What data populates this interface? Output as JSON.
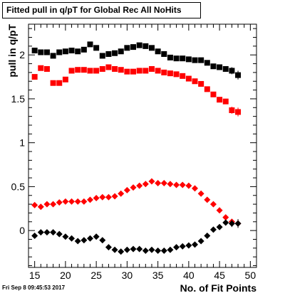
{
  "title": "Fitted pull in q/pT for Global Rec All NoHits",
  "timestamp": "Fri Sep  8 09:45:53 2017",
  "chart_data": {
    "type": "scatter",
    "title": "Fitted pull in q/pT for Global Rec All NoHits",
    "xlabel": "No. of Fit Points",
    "ylabel": "pull in q/pT",
    "xlim": [
      14,
      51
    ],
    "ylim": [
      -0.42,
      2.35
    ],
    "xticks": [
      15,
      20,
      25,
      30,
      35,
      40,
      45,
      50
    ],
    "yticks": [
      0,
      0.5,
      1,
      1.5,
      2
    ],
    "ytick_labels": [
      "0",
      "0.5",
      "1",
      "1.5",
      "2"
    ],
    "grid": false,
    "legend": "none",
    "series": [
      {
        "marker": "square",
        "color": "#000000",
        "x": [
          15,
          16,
          17,
          18,
          19,
          20,
          21,
          22,
          23,
          24,
          25,
          26,
          27,
          28,
          29,
          30,
          31,
          32,
          33,
          34,
          35,
          36,
          37,
          38,
          39,
          40,
          41,
          42,
          43,
          44,
          45,
          46,
          47,
          48
        ],
        "y": [
          2.05,
          2.03,
          2.03,
          1.99,
          2.03,
          2.04,
          2.05,
          2.04,
          2.06,
          2.12,
          2.08,
          1.99,
          2.01,
          2.02,
          2.04,
          2.08,
          2.09,
          2.11,
          2.1,
          2.08,
          2.04,
          2.01,
          1.97,
          1.96,
          1.96,
          1.95,
          1.94,
          1.94,
          1.91,
          1.87,
          1.86,
          1.84,
          1.82,
          1.77
        ],
        "yerr": [
          0.02,
          0.02,
          0.02,
          0.02,
          0.02,
          0.02,
          0.02,
          0.02,
          0.02,
          0.02,
          0.02,
          0.02,
          0.02,
          0.02,
          0.02,
          0.02,
          0.02,
          0.02,
          0.02,
          0.02,
          0.02,
          0.02,
          0.02,
          0.02,
          0.02,
          0.02,
          0.02,
          0.02,
          0.02,
          0.02,
          0.03,
          0.03,
          0.04,
          0.05
        ]
      },
      {
        "marker": "square",
        "color": "#ff0000",
        "x": [
          15,
          16,
          17,
          18,
          19,
          20,
          21,
          22,
          23,
          24,
          25,
          26,
          27,
          28,
          29,
          30,
          31,
          32,
          33,
          34,
          35,
          36,
          37,
          38,
          39,
          40,
          41,
          42,
          43,
          44,
          45,
          46,
          47,
          48
        ],
        "y": [
          1.75,
          1.85,
          1.84,
          1.68,
          1.68,
          1.72,
          1.82,
          1.83,
          1.83,
          1.82,
          1.82,
          1.84,
          1.86,
          1.84,
          1.83,
          1.81,
          1.81,
          1.82,
          1.82,
          1.84,
          1.82,
          1.8,
          1.79,
          1.78,
          1.76,
          1.73,
          1.7,
          1.67,
          1.61,
          1.55,
          1.49,
          1.47,
          1.37,
          1.35
        ],
        "yerr": [
          0.02,
          0.02,
          0.02,
          0.02,
          0.02,
          0.02,
          0.02,
          0.02,
          0.02,
          0.02,
          0.02,
          0.02,
          0.02,
          0.02,
          0.02,
          0.02,
          0.02,
          0.02,
          0.02,
          0.02,
          0.02,
          0.02,
          0.02,
          0.02,
          0.02,
          0.02,
          0.02,
          0.02,
          0.02,
          0.02,
          0.03,
          0.03,
          0.04,
          0.05
        ]
      },
      {
        "marker": "diamond",
        "color": "#ff0000",
        "x": [
          15,
          16,
          17,
          18,
          19,
          20,
          21,
          22,
          23,
          24,
          25,
          26,
          27,
          28,
          29,
          30,
          31,
          32,
          33,
          34,
          35,
          36,
          37,
          38,
          39,
          40,
          41,
          42,
          43,
          44,
          45,
          46,
          47,
          48
        ],
        "y": [
          0.29,
          0.27,
          0.3,
          0.3,
          0.32,
          0.33,
          0.33,
          0.33,
          0.33,
          0.35,
          0.37,
          0.38,
          0.38,
          0.39,
          0.42,
          0.46,
          0.49,
          0.51,
          0.53,
          0.56,
          0.54,
          0.54,
          0.53,
          0.52,
          0.52,
          0.51,
          0.48,
          0.42,
          0.35,
          0.3,
          0.23,
          0.15,
          0.1,
          0.08
        ],
        "yerr": [
          0.01,
          0.01,
          0.01,
          0.01,
          0.01,
          0.01,
          0.01,
          0.01,
          0.01,
          0.01,
          0.01,
          0.01,
          0.01,
          0.01,
          0.01,
          0.01,
          0.01,
          0.01,
          0.01,
          0.01,
          0.01,
          0.01,
          0.01,
          0.01,
          0.01,
          0.01,
          0.01,
          0.01,
          0.01,
          0.02,
          0.02,
          0.02,
          0.03,
          0.04
        ]
      },
      {
        "marker": "diamond",
        "color": "#000000",
        "x": [
          15,
          16,
          17,
          18,
          19,
          20,
          21,
          22,
          23,
          24,
          25,
          26,
          27,
          28,
          29,
          30,
          31,
          32,
          33,
          34,
          35,
          36,
          37,
          38,
          39,
          40,
          41,
          42,
          43,
          44,
          45,
          46,
          47,
          48
        ],
        "y": [
          -0.06,
          -0.02,
          -0.02,
          -0.02,
          -0.04,
          -0.07,
          -0.09,
          -0.12,
          -0.11,
          -0.09,
          -0.07,
          -0.11,
          -0.19,
          -0.22,
          -0.24,
          -0.22,
          -0.21,
          -0.21,
          -0.23,
          -0.22,
          -0.23,
          -0.23,
          -0.22,
          -0.19,
          -0.18,
          -0.17,
          -0.16,
          -0.12,
          -0.06,
          0.01,
          0.04,
          0.09,
          0.08,
          0.08
        ],
        "yerr": [
          0.01,
          0.01,
          0.01,
          0.01,
          0.01,
          0.01,
          0.01,
          0.01,
          0.01,
          0.01,
          0.01,
          0.01,
          0.01,
          0.01,
          0.01,
          0.01,
          0.01,
          0.01,
          0.01,
          0.01,
          0.01,
          0.01,
          0.01,
          0.01,
          0.01,
          0.01,
          0.01,
          0.01,
          0.02,
          0.02,
          0.02,
          0.03,
          0.04,
          0.05
        ]
      }
    ]
  }
}
